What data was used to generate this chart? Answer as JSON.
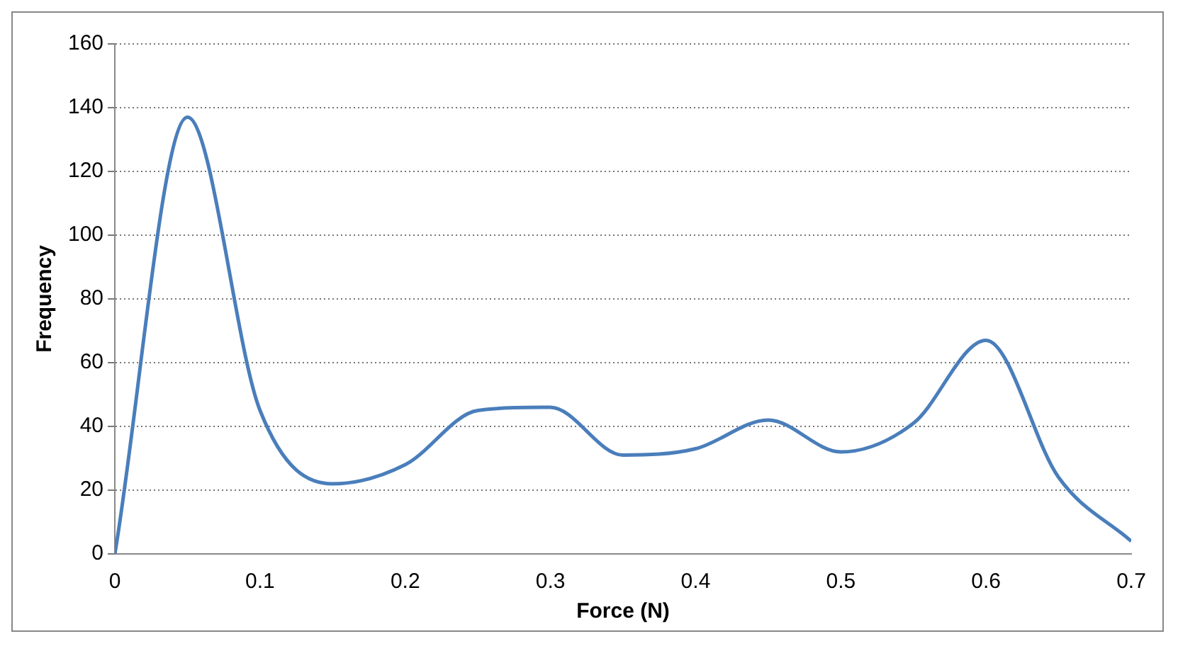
{
  "chart_data": {
    "type": "line",
    "xlabel": "Force (N)",
    "ylabel": "Frequency",
    "x": [
      0,
      0.05,
      0.1,
      0.15,
      0.2,
      0.25,
      0.3,
      0.35,
      0.4,
      0.45,
      0.5,
      0.55,
      0.6,
      0.65,
      0.7
    ],
    "series": [
      {
        "color": "#4a7ebb",
        "values": [
          0,
          137,
          45,
          22,
          28,
          45,
          46,
          31,
          33,
          42,
          32,
          41,
          67,
          24,
          4
        ]
      }
    ],
    "xlim": [
      0,
      0.7
    ],
    "xticks": [
      0,
      0.1,
      0.2,
      0.3,
      0.4,
      0.5,
      0.6,
      0.7
    ],
    "ylim": [
      0,
      160
    ],
    "yticks": [
      0,
      20,
      40,
      60,
      80,
      100,
      120,
      140,
      160
    ],
    "grid": "y",
    "legend": false,
    "marker": "none",
    "line_style": "solid"
  }
}
